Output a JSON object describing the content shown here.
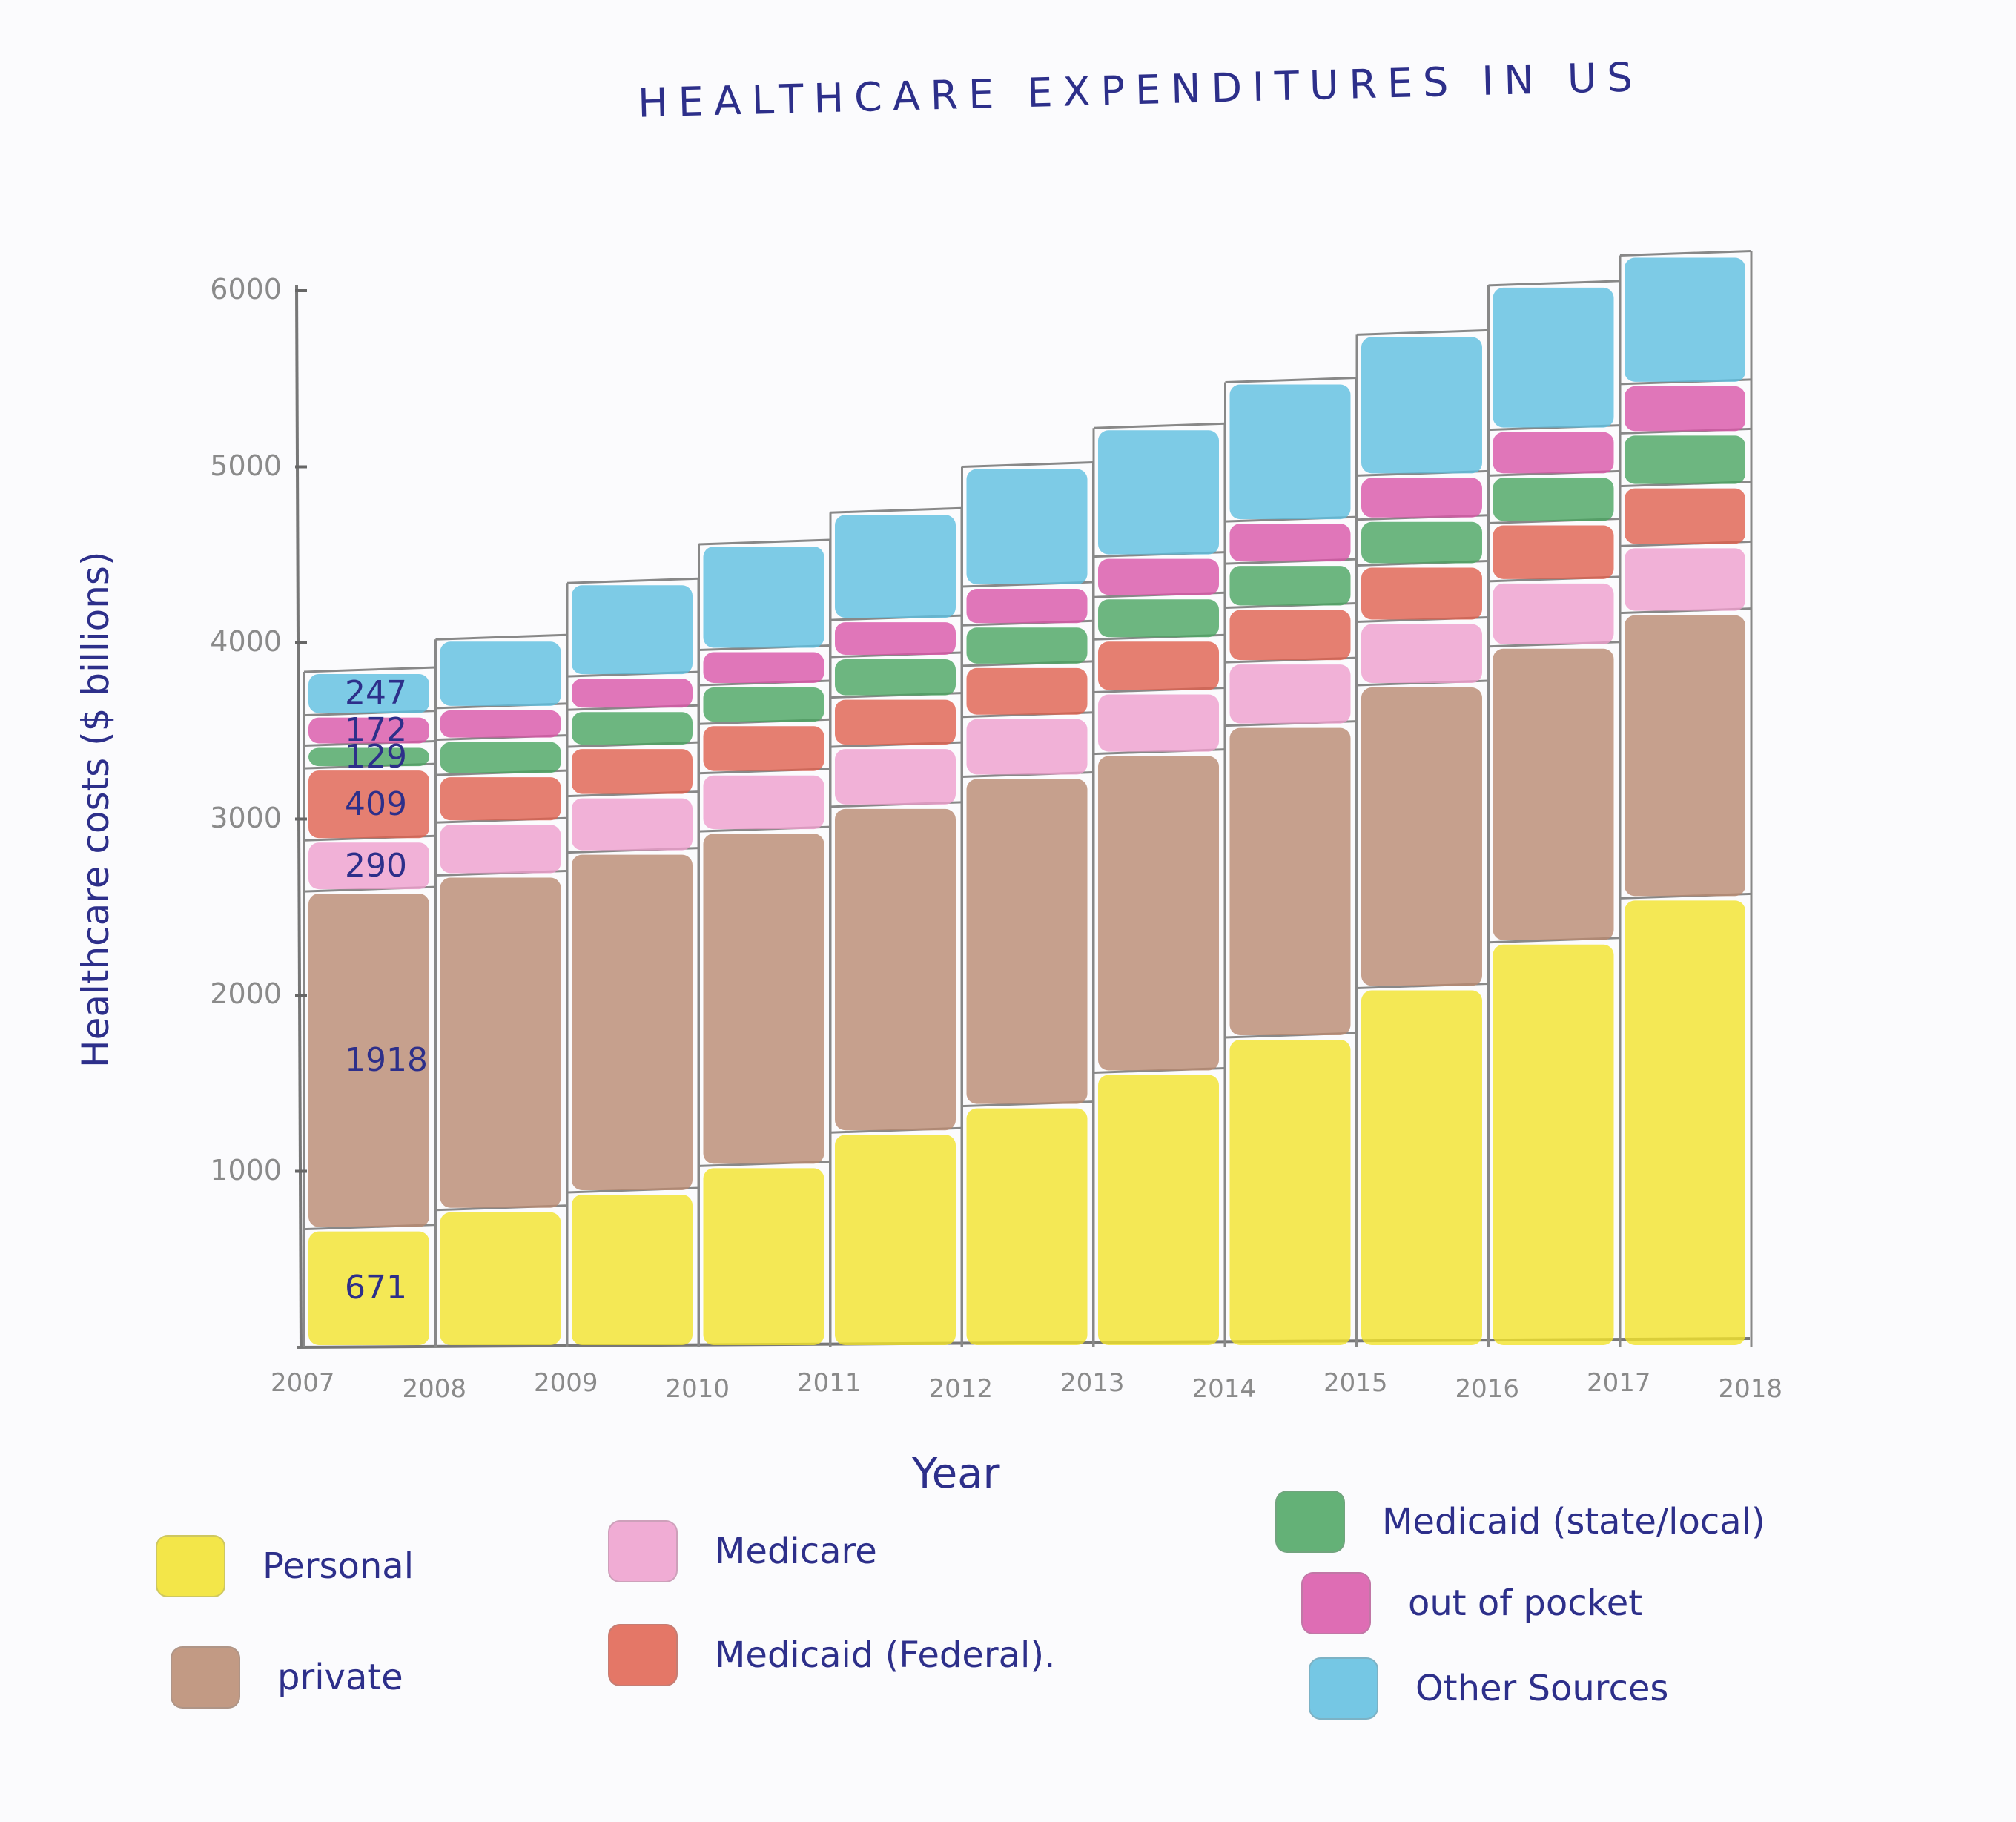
{
  "chart_data": {
    "type": "bar",
    "stacked": true,
    "title": "HEALTHCARE EXPENDITURES IN US",
    "xlabel": "Year",
    "ylabel": "Healthcare costs ($ billions)",
    "ylim": [
      0,
      6000
    ],
    "yticks": [
      "1000",
      "2000",
      "3000",
      "4000",
      "5000",
      "6000"
    ],
    "xticks": [
      "2007",
      "2008",
      "2009",
      "2010",
      "2011",
      "2012",
      "2013",
      "2014",
      "2015",
      "2016",
      "2017",
      "2018"
    ],
    "categories": [
      "2007",
      "2008",
      "2009",
      "2010",
      "2011",
      "2012",
      "2013",
      "2014",
      "2015",
      "2016",
      "2017"
    ],
    "series": [
      {
        "name": "Personal",
        "color": "#f2e32a",
        "values": [
          671,
          780,
          880,
          1030,
          1220,
          1370,
          1560,
          1760,
          2040,
          2300,
          2550
        ]
      },
      {
        "name": "private",
        "color": "#b98a70",
        "values": [
          1918,
          1900,
          1930,
          1900,
          1850,
          1870,
          1810,
          1770,
          1720,
          1680,
          1620
        ]
      },
      {
        "name": "Medicare",
        "color": "#ef9fcd",
        "values": [
          290,
          300,
          320,
          330,
          340,
          340,
          350,
          360,
          360,
          370,
          380
        ]
      },
      {
        "name": "Medicaid (Federal)",
        "color": "#e0604e",
        "values": [
          409,
          270,
          280,
          280,
          280,
          290,
          300,
          310,
          320,
          330,
          340
        ]
      },
      {
        "name": "Medicaid (state/local)",
        "color": "#4aa560",
        "values": [
          129,
          200,
          210,
          220,
          230,
          230,
          240,
          250,
          260,
          270,
          300
        ]
      },
      {
        "name": "out of pocket",
        "color": "#d955a8",
        "values": [
          172,
          180,
          190,
          200,
          210,
          220,
          230,
          240,
          250,
          260,
          280
        ]
      },
      {
        "name": "Other Sources",
        "color": "#5ebfe0",
        "values": [
          247,
          390,
          530,
          600,
          610,
          680,
          730,
          790,
          800,
          820,
          730
        ]
      }
    ],
    "annotations": [
      {
        "category": "2007",
        "series": "Personal",
        "text": "671"
      },
      {
        "category": "2007",
        "series": "private",
        "text": "1918"
      },
      {
        "category": "2007",
        "series": "Medicare",
        "text": "290"
      },
      {
        "category": "2007",
        "series": "Medicaid (Federal)",
        "text": "409"
      },
      {
        "category": "2007",
        "series": "Medicaid (state/local)",
        "text": "129"
      },
      {
        "category": "2007",
        "series": "out of pocket",
        "text": "172"
      },
      {
        "category": "2007",
        "series": "Other Sources",
        "text": "247"
      }
    ],
    "grid": false,
    "legend_position": "bottom"
  },
  "legend": [
    {
      "label": "Personal",
      "color": "#f2e32a"
    },
    {
      "label": "private",
      "color": "#b98a70"
    },
    {
      "label": "Medicare",
      "color": "#ef9fcd"
    },
    {
      "label": "Medicaid (Federal).",
      "color": "#e0604e"
    },
    {
      "label": "Medicaid (state/local)",
      "color": "#4aa560"
    },
    {
      "label": "out of pocket",
      "color": "#d955a8"
    },
    {
      "label": "Other Sources",
      "color": "#5ebfe0"
    }
  ]
}
